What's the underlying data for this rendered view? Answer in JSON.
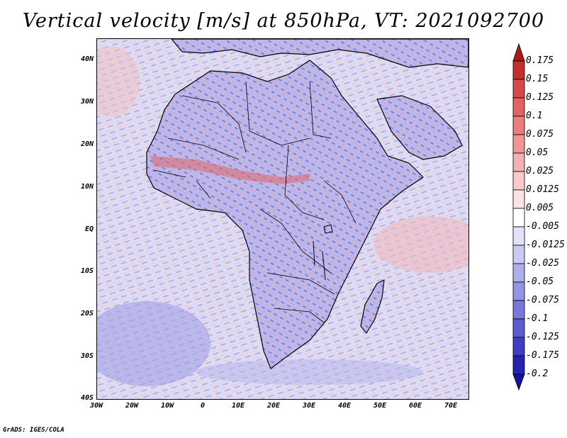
{
  "title": "Vertical velocity [m/s] at 850hPa, VT: 2021092700",
  "credit": "GrADS: IGES/COLA",
  "map": {
    "lon_range": [
      -30,
      75
    ],
    "lat_range": [
      -40,
      45
    ],
    "background_field": "vertical velocity",
    "land_outline_color": "#000000"
  },
  "axes": {
    "y_ticks": [
      "40N",
      "30N",
      "20N",
      "10N",
      "EQ",
      "10S",
      "20S",
      "30S",
      "40S"
    ],
    "x_ticks": [
      "30W",
      "20W",
      "10W",
      "0",
      "10E",
      "20E",
      "30E",
      "40E",
      "50E",
      "60E",
      "70E"
    ]
  },
  "colorbar": {
    "labels": [
      "0.175",
      "0.15",
      "0.125",
      "0.1",
      "0.075",
      "0.05",
      "0.025",
      "0.0125",
      "0.005",
      "-0.005",
      "-0.0125",
      "-0.025",
      "-0.05",
      "-0.075",
      "-0.1",
      "-0.125",
      "-0.175",
      "-0.2"
    ],
    "colors": [
      "#aa1a1a",
      "#c62e2e",
      "#d84a4a",
      "#e36262",
      "#ea7d7d",
      "#ef9797",
      "#f4b1b1",
      "#f8cbcb",
      "#fbe3e3",
      "#ffffff",
      "#e2e2f8",
      "#c9c9f2",
      "#afafeb",
      "#9494e3",
      "#7878da",
      "#5c5cd0",
      "#3e3ec4",
      "#2323b4",
      "#1313a0"
    ]
  }
}
